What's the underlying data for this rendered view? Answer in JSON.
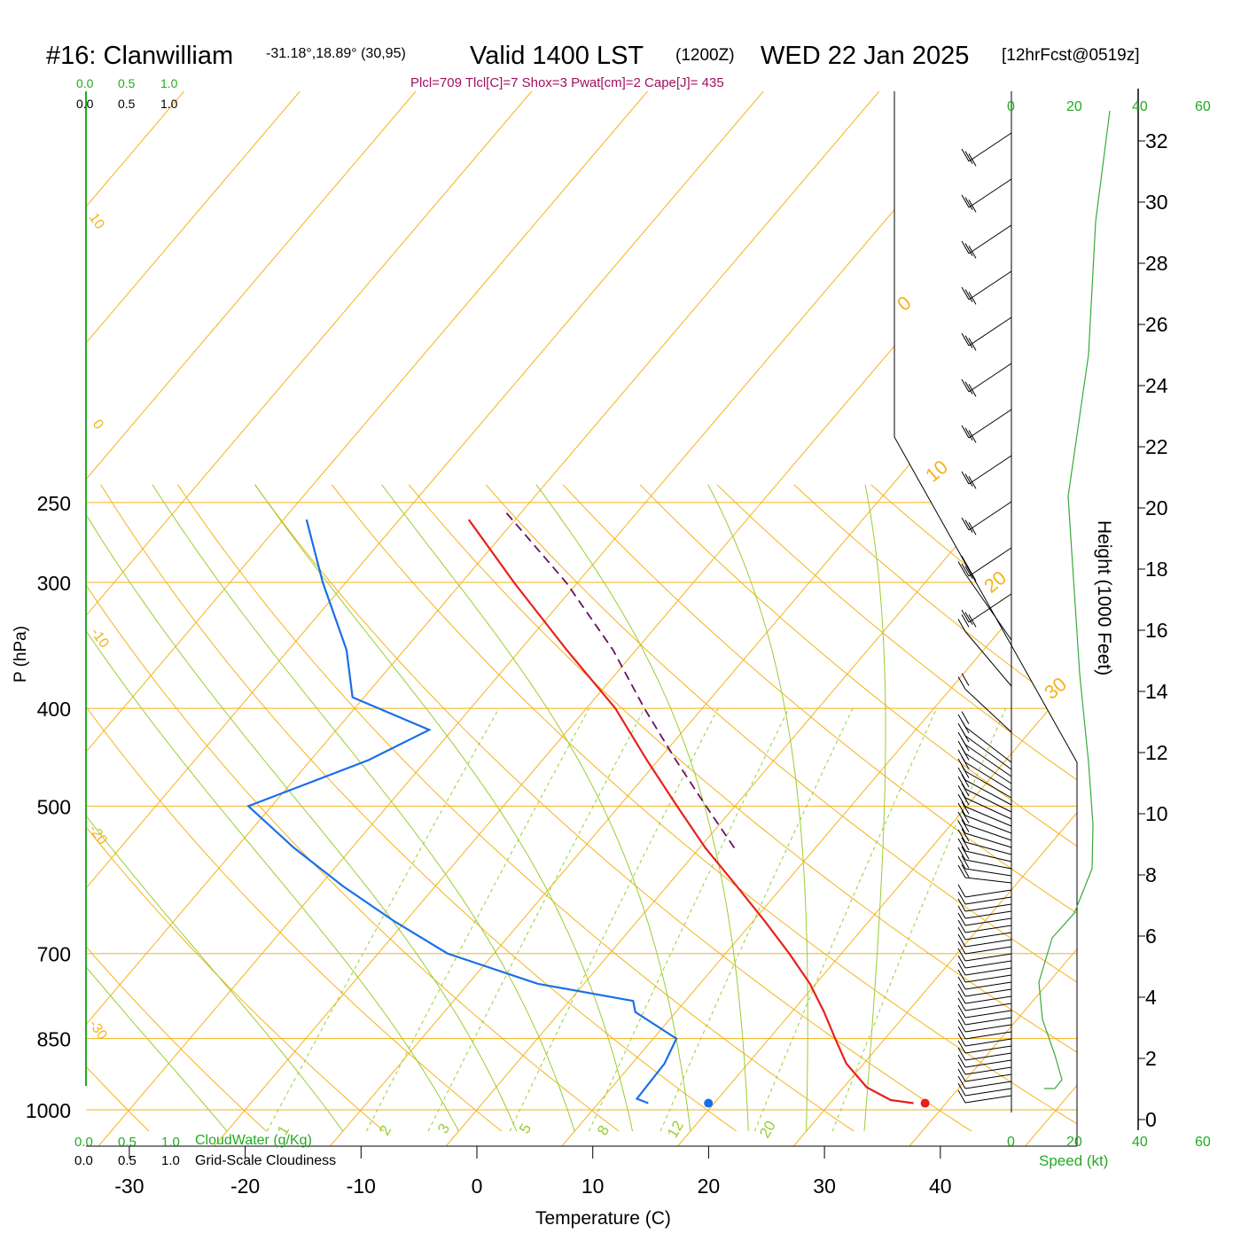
{
  "header": {
    "station": "#16: Clanwilliam",
    "coords": "-31.18°,18.89° (30,95)",
    "valid": "Valid 1400 LST",
    "utc": "(1200Z)",
    "date": "WED 22 Jan 2025",
    "forecast": "[12hrFcst@0519z]",
    "indices": "Plcl=709 Tlcl[C]=7 Shox=3 Pwat[cm]=2 Cape[J]= 435"
  },
  "colors": {
    "isobar": "#f5b21a",
    "isotherm": "#f5b21a",
    "dry_adiabat": "#f5b21a",
    "moist_adiabat": "#9acd32",
    "mixing_ratio": "#9acd32",
    "temperature": "#e8201a",
    "dewpoint": "#1a6fe8",
    "parcel": "#6a1060",
    "indices_text": "#a01060",
    "green_axis": "#22aa22",
    "frame": "#000000"
  },
  "axes": {
    "y_label": "P (hPa)",
    "x_label": "Temperature (C)",
    "height_label": "Height (1000 Feet)",
    "speed_label": "Speed (kt)",
    "pressure_ticks": [
      "250",
      "300",
      "400",
      "500",
      "700",
      "850",
      "1000"
    ],
    "temp_ticks": [
      "-30",
      "-20",
      "-10",
      "0",
      "10",
      "20",
      "30",
      "40"
    ],
    "height_ticks": [
      "0",
      "2",
      "4",
      "6",
      "8",
      "10",
      "12",
      "14",
      "16",
      "18",
      "20",
      "22",
      "24",
      "26",
      "28",
      "30",
      "32"
    ],
    "speed_ticks": [
      "0",
      "20",
      "40",
      "60"
    ],
    "cloud_ticks": [
      "0.0",
      "0.5",
      "1.0"
    ],
    "cloudwater_label": "CloudWater (g/Kg)",
    "cloudiness_label": "Grid-Scale Cloudiness",
    "dry_adiabat_labels": [
      "10",
      "0",
      "-10",
      "-20",
      "-30"
    ],
    "upper_adiabat_labels": [
      "0",
      "10",
      "20",
      "30"
    ],
    "mixing_ratio_labels": [
      "1",
      "2",
      "3",
      "5",
      "8",
      "12",
      "20"
    ]
  },
  "chart_data": {
    "type": "skew-t",
    "pressure_levels_hpa": [
      1000,
      850,
      700,
      500,
      400,
      300,
      250
    ],
    "temperature_profile": [
      {
        "p": 985,
        "t": 37.2
      },
      {
        "p": 978,
        "t": 35.0
      },
      {
        "p": 950,
        "t": 32.0
      },
      {
        "p": 900,
        "t": 28.5
      },
      {
        "p": 850,
        "t": 25.7
      },
      {
        "p": 800,
        "t": 22.8
      },
      {
        "p": 750,
        "t": 19.5
      },
      {
        "p": 700,
        "t": 15.5
      },
      {
        "p": 650,
        "t": 11.0
      },
      {
        "p": 600,
        "t": 6.0
      },
      {
        "p": 550,
        "t": 0.5
      },
      {
        "p": 500,
        "t": -5.0
      },
      {
        "p": 450,
        "t": -11.0
      },
      {
        "p": 400,
        "t": -17.5
      },
      {
        "p": 350,
        "t": -26.0
      },
      {
        "p": 300,
        "t": -35.5
      },
      {
        "p": 260,
        "t": -44.0
      }
    ],
    "dewpoint_profile": [
      {
        "p": 985,
        "td": 14.3
      },
      {
        "p": 975,
        "td": 13.0
      },
      {
        "p": 900,
        "td": 12.8
      },
      {
        "p": 850,
        "td": 12.0
      },
      {
        "p": 800,
        "td": 6.5
      },
      {
        "p": 780,
        "td": 5.5
      },
      {
        "p": 750,
        "td": -4.0
      },
      {
        "p": 700,
        "td": -14.0
      },
      {
        "p": 650,
        "td": -21.0
      },
      {
        "p": 600,
        "td": -28.0
      },
      {
        "p": 550,
        "td": -35.0
      },
      {
        "p": 500,
        "td": -42.0
      },
      {
        "p": 450,
        "td": -35.0
      },
      {
        "p": 420,
        "td": -32.0
      },
      {
        "p": 390,
        "td": -41.0
      },
      {
        "p": 350,
        "td": -45.0
      },
      {
        "p": 300,
        "td": -52.0
      },
      {
        "p": 260,
        "td": -58.0
      }
    ],
    "parcel_profile": [
      {
        "p": 550,
        "t": 3.0
      },
      {
        "p": 500,
        "t": -2.5
      },
      {
        "p": 450,
        "t": -8.5
      },
      {
        "p": 400,
        "t": -15.0
      },
      {
        "p": 350,
        "t": -22.0
      },
      {
        "p": 300,
        "t": -31.0
      },
      {
        "p": 255,
        "t": -41.5
      }
    ],
    "surface_temperature": 38.2,
    "surface_dewpoint": 19.5,
    "indices": {
      "plcl_hpa": 709,
      "tlcl_c": 7,
      "showalter": 3,
      "pwat_cm": 2,
      "cape_j": 435
    },
    "x_range_c": [
      -30,
      40
    ],
    "y_range_hpa": [
      1000,
      250
    ],
    "height_range_kft": [
      0,
      32
    ],
    "speed_range_kt": [
      0,
      60
    ],
    "grid": true
  }
}
